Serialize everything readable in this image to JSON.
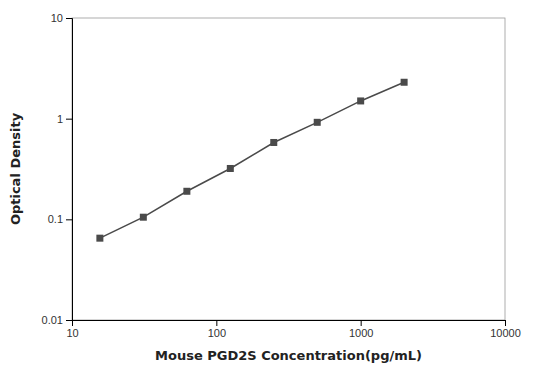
{
  "chart_data": {
    "type": "line",
    "x": [
      15.6,
      31.2,
      62.5,
      125,
      250,
      500,
      1000,
      2000
    ],
    "values": [
      0.065,
      0.105,
      0.19,
      0.32,
      0.58,
      0.92,
      1.5,
      2.3
    ],
    "xlabel": "Mouse PGD2S Concentration(pg/mL)",
    "ylabel": "Optical Density",
    "xlim": [
      10,
      10000
    ],
    "ylim": [
      0.01,
      10
    ],
    "xticks": [
      10,
      100,
      1000,
      10000
    ],
    "yticks": [
      0.01,
      0.1,
      1,
      10
    ],
    "log": true,
    "color": "#4a4a4a",
    "marker": "square"
  }
}
